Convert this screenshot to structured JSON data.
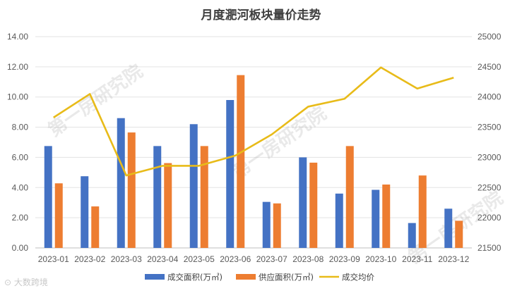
{
  "chart_data": {
    "type": "bar",
    "title": "月度淝河板块量价走势",
    "categories": [
      "2023-01",
      "2023-02",
      "2023-03",
      "2023-04",
      "2023-05",
      "2023-06",
      "2023-07",
      "2023-08",
      "2023-09",
      "2023-10",
      "2023-11",
      "2023-12"
    ],
    "series": [
      {
        "name": "成交面积(万㎡)",
        "type": "bar",
        "axis": "left",
        "color": "#4472C4",
        "values": [
          6.75,
          4.75,
          8.6,
          6.75,
          8.2,
          9.8,
          3.05,
          6.0,
          3.6,
          3.85,
          1.65,
          2.6
        ]
      },
      {
        "name": "供应面积(万㎡)",
        "type": "bar",
        "axis": "left",
        "color": "#ED7D31",
        "values": [
          4.28,
          2.75,
          7.65,
          5.62,
          6.75,
          11.45,
          2.95,
          5.65,
          6.75,
          4.2,
          4.8,
          1.8
        ]
      },
      {
        "name": "成交均价",
        "type": "line",
        "axis": "right",
        "color": "#E8BB19",
        "values": [
          23660,
          24050,
          22700,
          22860,
          22860,
          23030,
          23380,
          23840,
          23970,
          24490,
          24140,
          24320
        ]
      }
    ],
    "y_left": {
      "min": 0,
      "max": 14,
      "step": 2,
      "ticks": [
        "0.00",
        "2.00",
        "4.00",
        "6.00",
        "8.00",
        "10.00",
        "12.00",
        "14.00"
      ]
    },
    "y_right": {
      "min": 21500,
      "max": 25000,
      "step": 500,
      "ticks": [
        "21500",
        "22000",
        "22500",
        "23000",
        "23500",
        "24000",
        "24500",
        "25000"
      ]
    },
    "grid": true,
    "legend_position": "bottom"
  },
  "watermark": "第一房研究院",
  "source_label": "大数跨境"
}
